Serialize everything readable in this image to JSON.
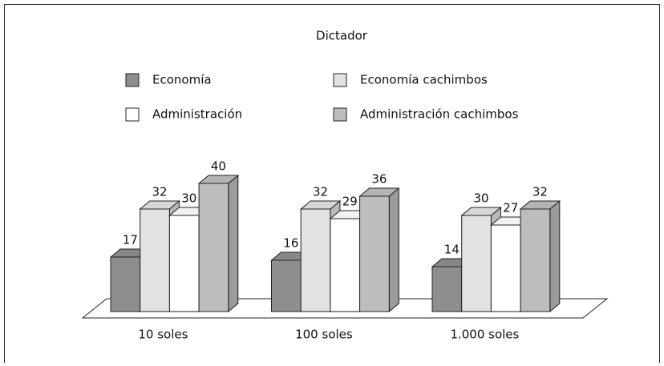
{
  "chart_data": {
    "type": "bar3d",
    "title": "Dictador",
    "categories": [
      "10 soles",
      "100 soles",
      "1.000 soles"
    ],
    "series": [
      {
        "name": "Economía",
        "color": "#8e8e8e",
        "values": [
          17,
          16,
          14
        ]
      },
      {
        "name": "Economía cachimbos",
        "color": "#e2e2e2",
        "values": [
          32,
          32,
          30
        ]
      },
      {
        "name": "Administración",
        "color": "#ffffff",
        "values": [
          30,
          29,
          27
        ]
      },
      {
        "name": "Administración cachimbos",
        "color": "#bdbdbd",
        "values": [
          40,
          36,
          32
        ]
      }
    ]
  }
}
